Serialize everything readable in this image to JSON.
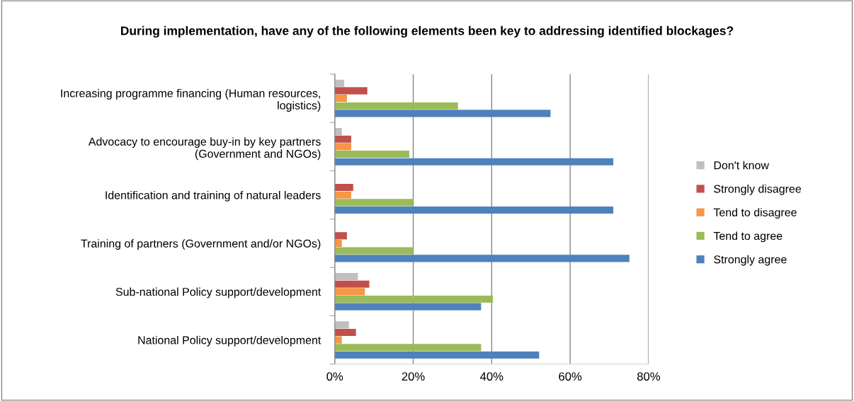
{
  "chart_data": {
    "type": "bar",
    "orientation": "horizontal",
    "title": "During implementation, have any of the following elements been key to addressing identified blockages?",
    "categories": [
      "Increasing programme financing (Human resources,\nlogistics)",
      "Advocacy to encourage buy-in by key partners\n(Government and NGOs)",
      "Identification and training of natural leaders",
      "Training of partners (Government and/or NGOs)",
      "Sub-national Policy support/development",
      "National Policy support/development"
    ],
    "series": [
      {
        "name": "Don't know",
        "color": "#bfbfbf",
        "values": [
          2.4,
          1.8,
          0,
          0,
          5.9,
          3.6
        ]
      },
      {
        "name": "Strongly disagree",
        "color": "#c0504d",
        "values": [
          8.3,
          4.2,
          4.7,
          3.1,
          8.8,
          5.4
        ]
      },
      {
        "name": "Tend to disagree",
        "color": "#f79646",
        "values": [
          3.1,
          4.2,
          4.2,
          1.8,
          7.7,
          1.8
        ]
      },
      {
        "name": "Tend to agree",
        "color": "#9bbb59",
        "values": [
          31.4,
          19,
          20,
          20,
          40.3,
          37.3
        ]
      },
      {
        "name": "Strongly agree",
        "color": "#4f81bd",
        "values": [
          55,
          71,
          71,
          75.1,
          37.3,
          52.1
        ]
      }
    ],
    "xlim": [
      0,
      80
    ],
    "xticks": [
      {
        "value": 0,
        "label": "0%"
      },
      {
        "value": 20,
        "label": "20%"
      },
      {
        "value": 40,
        "label": "40%"
      },
      {
        "value": 60,
        "label": "60%"
      },
      {
        "value": 80,
        "label": "80%"
      }
    ],
    "grid": "x",
    "legend": "right"
  }
}
